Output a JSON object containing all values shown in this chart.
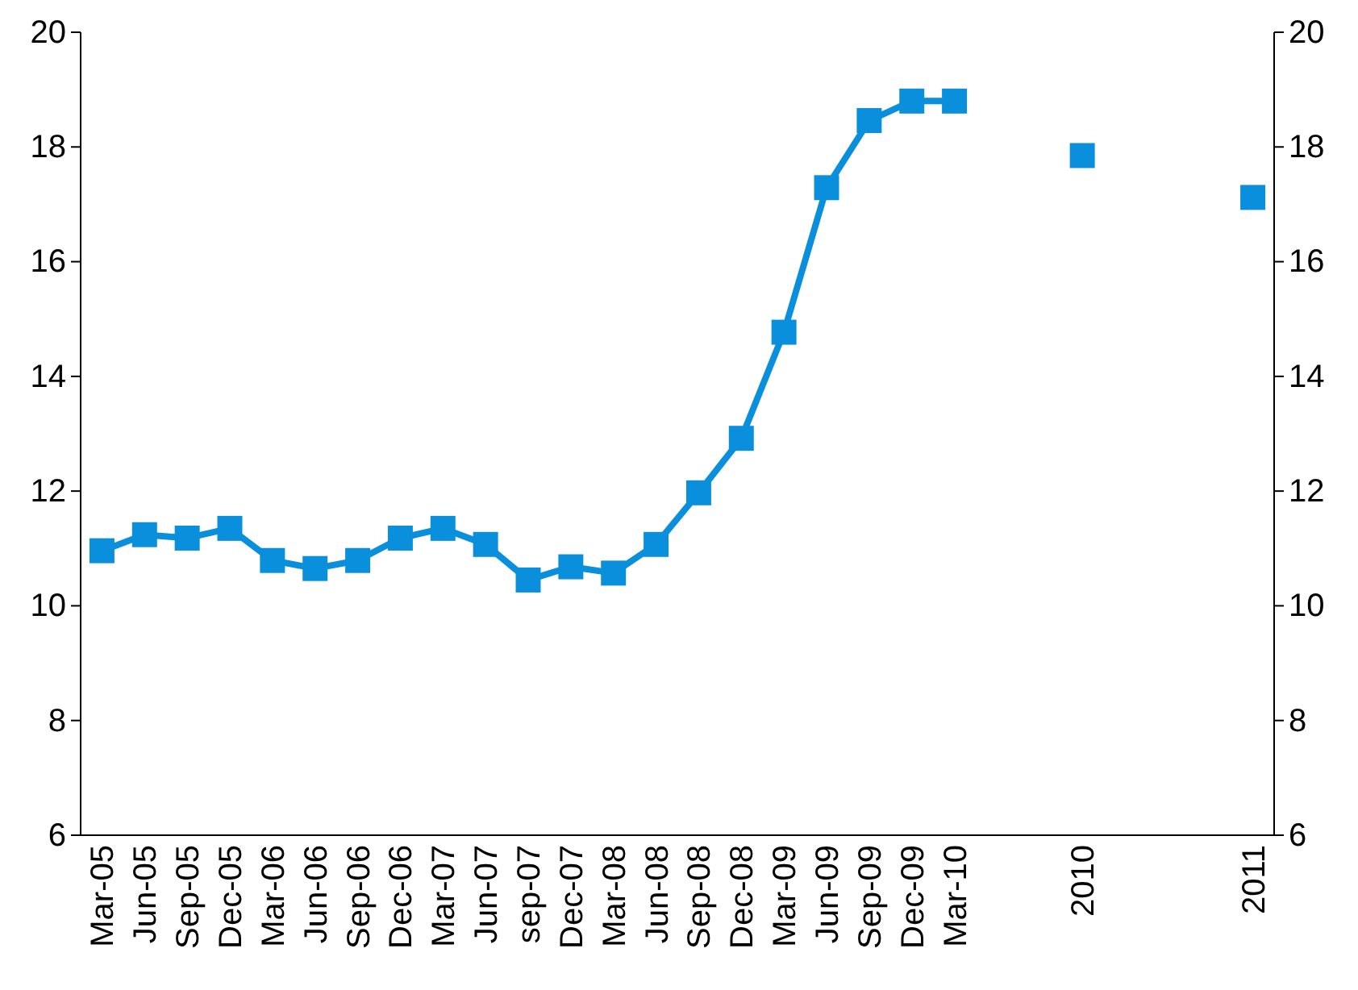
{
  "chart_data": {
    "type": "line",
    "categories": [
      "Mar-05",
      "Jun-05",
      "Sep-05",
      "Dec-05",
      "Mar-06",
      "Jun-06",
      "Sep-06",
      "Dec-06",
      "Mar-07",
      "Jun-07",
      "sep-07",
      "Dec-07",
      "Mar-08",
      "Jun-08",
      "Sep-08",
      "Dec-08",
      "Mar-09",
      "Jun-09",
      "Sep-09",
      "Dec-09",
      "Mar-10",
      null,
      null,
      "2010",
      null,
      null,
      null,
      "2011"
    ],
    "series": [
      {
        "color": "#0a8fdc",
        "values": [
          10.96,
          11.24,
          11.18,
          11.35,
          10.79,
          10.65,
          10.79,
          11.18,
          11.35,
          11.07,
          10.45,
          10.68,
          10.57,
          11.07,
          11.97,
          12.92,
          14.77,
          17.29,
          18.46,
          18.8,
          18.8,
          null,
          null,
          null,
          null,
          null,
          null,
          null
        ]
      },
      {
        "type": "scatter",
        "color": "#0a8fdc",
        "values": [
          null,
          null,
          null,
          null,
          null,
          null,
          null,
          null,
          null,
          null,
          null,
          null,
          null,
          null,
          null,
          null,
          null,
          null,
          null,
          null,
          null,
          null,
          null,
          17.85,
          null,
          null,
          null,
          17.12
        ]
      }
    ],
    "ylim": [
      6,
      20
    ],
    "yticks": [
      6,
      8,
      10,
      12,
      14,
      16,
      18,
      20
    ],
    "y2lim": [
      6,
      20
    ],
    "y2ticks": [
      6,
      8,
      10,
      12,
      14,
      16,
      18,
      20
    ],
    "marker": "square",
    "line_style": "solid"
  }
}
